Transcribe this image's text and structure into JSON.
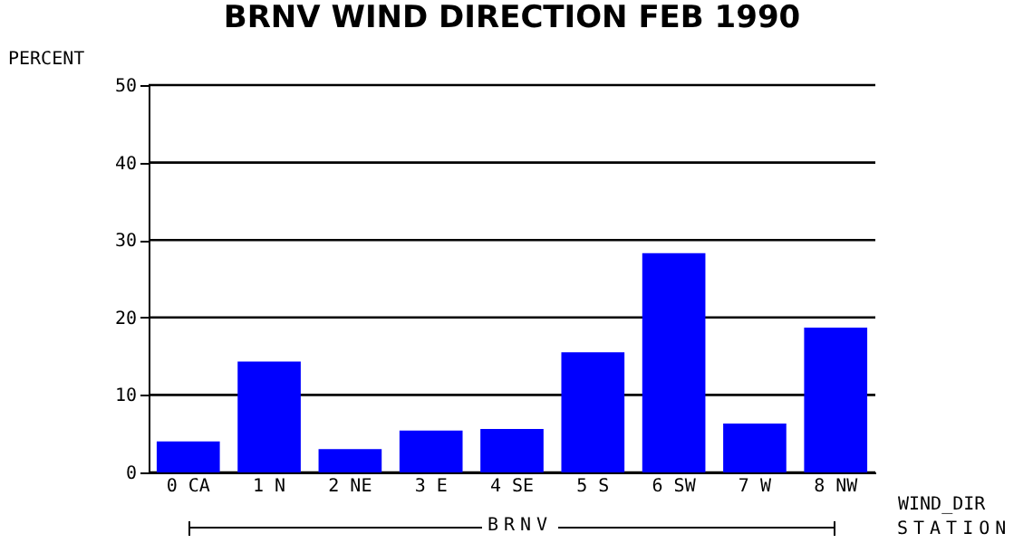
{
  "chart_data": {
    "type": "bar",
    "title": "BRNV WIND DIRECTION FEB 1990",
    "ylabel": "PERCENT",
    "xlabel": "WIND_DIR",
    "categories": [
      "0 CA",
      "1 N",
      "2 NE",
      "3 E",
      "4 SE",
      "5 S",
      "6 SW",
      "7 W",
      "8 NW"
    ],
    "values": [
      4.0,
      14.3,
      3.0,
      5.4,
      5.6,
      15.5,
      28.3,
      6.3,
      18.7
    ],
    "color": "#0000ff",
    "ylim": [
      0,
      50
    ],
    "yticks": [
      0,
      10,
      20,
      30,
      40,
      50
    ],
    "grid": "y",
    "annotations": [
      "BRNV",
      "STATION"
    ]
  }
}
